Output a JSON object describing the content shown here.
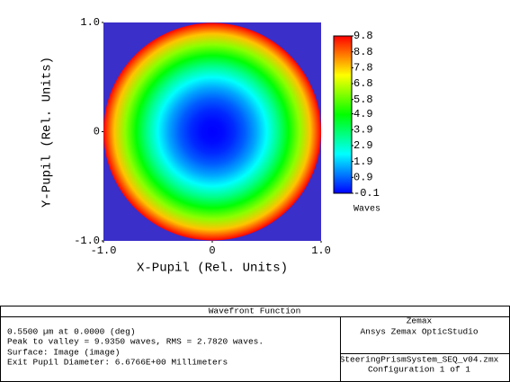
{
  "chart_data": {
    "type": "wavefront-map",
    "xlabel": "X-Pupil (Rel. Units)",
    "ylabel": "Y-Pupil (Rel. Units)",
    "xlim": [
      -1,
      1
    ],
    "ylim": [
      -1,
      1
    ],
    "xticks": [
      {
        "value": -1,
        "label": "-1.0"
      },
      0,
      {
        "value": 1,
        "label": "1.0"
      }
    ],
    "yticks": [
      {
        "value": -1,
        "label": "-1.0"
      },
      0,
      {
        "value": 1,
        "label": "1.0"
      }
    ],
    "radius": [
      0,
      0.1,
      0.2,
      0.3,
      0.4,
      0.5,
      0.6,
      0.7,
      0.8,
      0.9,
      1.0
    ],
    "values": [
      -0.1,
      0.0,
      0.3,
      0.8,
      1.5,
      2.4,
      3.5,
      4.8,
      6.2,
      7.9,
      9.8
    ],
    "background_color": "#3a2fc8",
    "colorbar": {
      "label": "Waves",
      "lim": [
        -0.1,
        9.8
      ],
      "ticks": [
        9.8,
        8.8,
        7.8,
        6.8,
        5.8,
        4.9,
        3.9,
        2.9,
        1.9,
        0.9,
        -0.1
      ]
    }
  },
  "info": {
    "title": "Wavefront Function",
    "lines": [
      "0.5500 µm at 0.0000 (deg)",
      "Peak to valley = 9.9350 waves, RMS = 2.7820 waves.",
      "Surface: Image (image)",
      "Exit Pupil Diameter: 6.6766E+00 Millimeters"
    ],
    "company": "Zemax",
    "product": "Ansys Zemax OpticStudio",
    "file": "SteeringPrismSystem_SEQ_v04.zmx",
    "configuration": "Configuration 1 of 1"
  }
}
